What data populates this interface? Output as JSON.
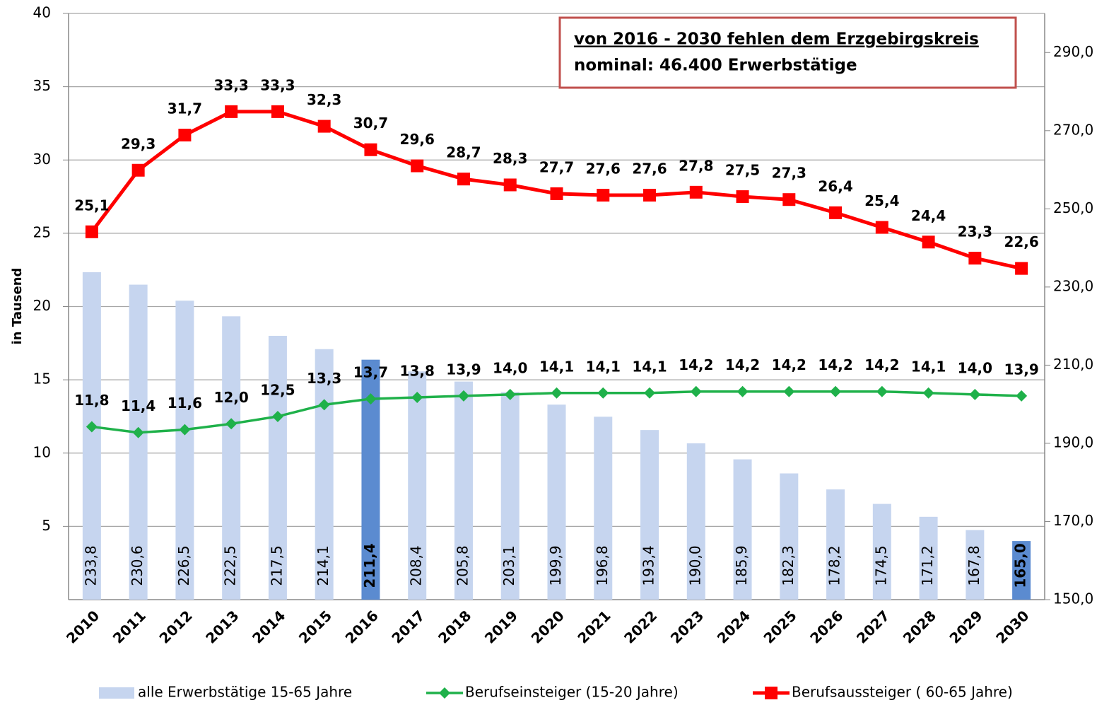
{
  "chart_data": {
    "type": "bar-line",
    "annotation": {
      "line1": "von 2016 - 2030 fehlen dem Erzgebirgskreis",
      "line2": "nominal:  46.400 Erwerbstätige",
      "border_color": "#c0504d"
    },
    "ylabel": "in Tausend",
    "categories": [
      "2010",
      "2011",
      "2012",
      "2013",
      "2014",
      "2015",
      "2016",
      "2017",
      "2018",
      "2019",
      "2020",
      "2021",
      "2022",
      "2023",
      "2024",
      "2025",
      "2026",
      "2027",
      "2028",
      "2029",
      "2030"
    ],
    "ylim": [
      0,
      40
    ],
    "yticks": [
      5,
      10,
      15,
      20,
      25,
      30,
      35,
      40
    ],
    "y2lim": [
      150,
      300
    ],
    "y2ticks": [
      {
        "value": 150,
        "label": "150,0"
      },
      {
        "value": 170,
        "label": "170,0"
      },
      {
        "value": 190,
        "label": "190,0"
      },
      {
        "value": 210,
        "label": "210,0"
      },
      {
        "value": 230,
        "label": "230,0"
      },
      {
        "value": 250,
        "label": "250,0"
      },
      {
        "value": 270,
        "label": "270,0"
      },
      {
        "value": 290,
        "label": "290,0"
      }
    ],
    "grid": true,
    "series": [
      {
        "name": "alle Erwerbstätige 15-65 Jahre",
        "type": "bar",
        "axis": "y2",
        "color": "#c6d5ef",
        "colors": [
          "#c6d5ef",
          "#c6d5ef",
          "#c6d5ef",
          "#c6d5ef",
          "#c6d5ef",
          "#c6d5ef",
          "#5b8bd0",
          "#c6d5ef",
          "#c6d5ef",
          "#c6d5ef",
          "#c6d5ef",
          "#c6d5ef",
          "#c6d5ef",
          "#c6d5ef",
          "#c6d5ef",
          "#c6d5ef",
          "#c6d5ef",
          "#c6d5ef",
          "#c6d5ef",
          "#c6d5ef",
          "#5b8bd0"
        ],
        "label_colors": [
          "#6f8fc4",
          "#6f8fc4",
          "#6f8fc4",
          "#6f8fc4",
          "#6f8fc4",
          "#6f8fc4",
          "#000000",
          "#6f8fc4",
          "#6f8fc4",
          "#6f8fc4",
          "#6f8fc4",
          "#6f8fc4",
          "#6f8fc4",
          "#6f8fc4",
          "#6f8fc4",
          "#6f8fc4",
          "#6f8fc4",
          "#6f8fc4",
          "#6f8fc4",
          "#6f8fc4",
          "#000000"
        ],
        "values": [
          233.8,
          230.6,
          226.5,
          222.5,
          217.5,
          214.1,
          211.4,
          208.4,
          205.8,
          203.1,
          199.9,
          196.8,
          193.4,
          190.0,
          185.9,
          182.3,
          178.2,
          174.5,
          171.2,
          167.8,
          165.0
        ],
        "value_labels": [
          "233,8",
          "230,6",
          "226,5",
          "222,5",
          "217,5",
          "214,1",
          "211,4",
          "208,4",
          "205,8",
          "203,1",
          "199,9",
          "196,8",
          "193,4",
          "190,0",
          "185,9",
          "182,3",
          "178,2",
          "174,5",
          "171,2",
          "167,8",
          "165,0"
        ]
      },
      {
        "name": "Berufseinsteiger (15-20 Jahre)",
        "type": "line",
        "marker": "diamond",
        "color": "#1fb14a",
        "label_colors": [
          "#1fb14a",
          "#1fb14a",
          "#1fb14a",
          "#1fb14a",
          "#1fb14a",
          "#1fb14a",
          "#000000",
          "#1fb14a",
          "#1fb14a",
          "#1fb14a",
          "#1fb14a",
          "#1fb14a",
          "#1fb14a",
          "#1fb14a",
          "#1fb14a",
          "#1fb14a",
          "#1fb14a",
          "#1fb14a",
          "#1fb14a",
          "#1fb14a",
          "#000000"
        ],
        "values": [
          11.8,
          11.4,
          11.6,
          12.0,
          12.5,
          13.3,
          13.7,
          13.8,
          13.9,
          14.0,
          14.1,
          14.1,
          14.1,
          14.2,
          14.2,
          14.2,
          14.2,
          14.2,
          14.1,
          14.0,
          13.9
        ],
        "value_labels": [
          "11,8",
          "11,4",
          "11,6",
          "12,0",
          "12,5",
          "13,3",
          "13,7",
          "13,8",
          "13,9",
          "14,0",
          "14,1",
          "14,1",
          "14,1",
          "14,2",
          "14,2",
          "14,2",
          "14,2",
          "14,2",
          "14,1",
          "14,0",
          "13,9"
        ]
      },
      {
        "name": "Berufsaussteiger ( 60-65 Jahre)",
        "type": "line",
        "marker": "square",
        "color": "#ff0000",
        "label_colors": [
          "#ff0000",
          "#ff0000",
          "#ff0000",
          "#ff0000",
          "#ff0000",
          "#ff0000",
          "#000000",
          "#ff0000",
          "#ff0000",
          "#ff0000",
          "#ff0000",
          "#ff0000",
          "#ff0000",
          "#ff0000",
          "#ff0000",
          "#ff0000",
          "#ff0000",
          "#ff0000",
          "#ff0000",
          "#ff0000",
          "#000000"
        ],
        "values": [
          25.1,
          29.3,
          31.7,
          33.3,
          33.3,
          32.3,
          30.7,
          29.6,
          28.7,
          28.3,
          27.7,
          27.6,
          27.6,
          27.8,
          27.5,
          27.3,
          26.4,
          25.4,
          24.4,
          23.3,
          22.6
        ],
        "value_labels": [
          "25,1",
          "29,3",
          "31,7",
          "33,3",
          "33,3",
          "32,3",
          "30,7",
          "29,6",
          "28,7",
          "28,3",
          "27,7",
          "27,6",
          "27,6",
          "27,8",
          "27,5",
          "27,3",
          "26,4",
          "25,4",
          "24,4",
          "23,3",
          "22,6"
        ]
      }
    ]
  }
}
